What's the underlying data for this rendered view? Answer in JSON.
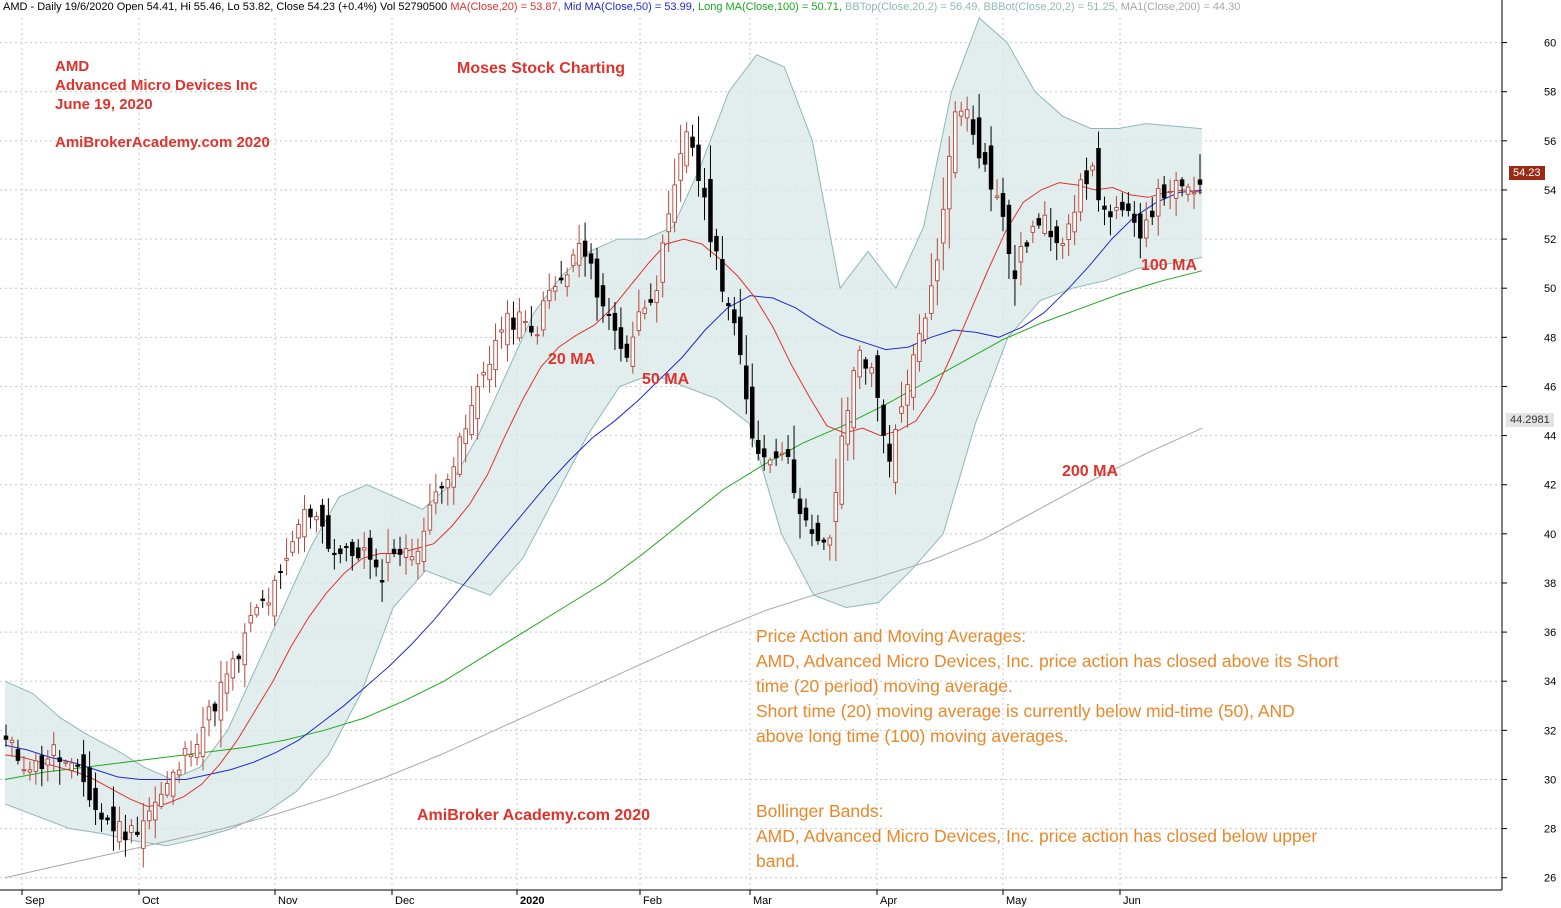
{
  "header": {
    "title": "AMD - Daily 19/6/2020 Open 54.41, Hi 55.46, Lo 53.82, Close 54.23 (+0.4%) Vol 52790500",
    "indicators": [
      {
        "label": "MA(Close,20) = 53.87,",
        "color": "#e0322c"
      },
      {
        "label": "Mid MA(Close,50) = 53.99,",
        "color": "#1f2bc7"
      },
      {
        "label": "Long MA(Close,100) = 50.71,",
        "color": "#1ea81e"
      },
      {
        "label": "BBTop(Close,20,2) = 56.49,",
        "color": "#8fb7b7"
      },
      {
        "label": "BBBot(Close,20,2) = 51.25,",
        "color": "#8fb7b7"
      },
      {
        "label": "MA1(Close,200) = 44.30",
        "color": "#a8a8a8"
      }
    ]
  },
  "annotations": {
    "ticker": "AMD",
    "company": "Advanced Micro Devices Inc",
    "date": "June 19, 2020",
    "site_top": "AmiBrokerAcademy.com  2020",
    "brand": "Moses Stock Charting",
    "site_bottom": "AmiBroker Academy.com  2020",
    "ma20": "20 MA",
    "ma50": "50 MA",
    "ma100": "100 MA",
    "ma200": "200 MA"
  },
  "commentary": {
    "pa_title": "Price Action and Moving Averages:",
    "pa_line1": "AMD, Advanced Micro Devices, Inc. price action has closed above its Short",
    "pa_line2": "time (20 period) moving average.",
    "pa_line3": "Short time (20) moving average is currently below mid-time (50), AND",
    "pa_line4": "above long time (100) moving averages.",
    "bb_title": "Bollinger Bands:",
    "bb_line1": "AMD, Advanced Micro Devices, Inc. price action has closed below upper",
    "bb_line2": "band."
  },
  "price_labels": {
    "last": "54.23",
    "ma200": "44.2981"
  },
  "colors": {
    "up_candle": "#b5463a",
    "down_candle": "#000000",
    "ma20": "#e0322c",
    "ma50": "#1f2bc7",
    "ma100": "#1ea81e",
    "ma200": "#a8a8a8",
    "bb_fill": "#d8e8e8",
    "bb_line": "#8fb7b7",
    "grid": "#c8c8c8"
  },
  "chart_data": {
    "type": "candlestick",
    "ylim": [
      25.5,
      61
    ],
    "yticks": [
      26,
      28,
      30,
      32,
      34,
      36,
      38,
      40,
      42,
      44,
      46,
      48,
      50,
      52,
      54,
      56,
      58,
      60
    ],
    "xticks": [
      {
        "label": "Sep",
        "bold": false
      },
      {
        "label": "Oct",
        "bold": false
      },
      {
        "label": "Nov",
        "bold": false
      },
      {
        "label": "Dec",
        "bold": false
      },
      {
        "label": "2020",
        "bold": true
      },
      {
        "label": "Feb",
        "bold": false
      },
      {
        "label": "Mar",
        "bold": false
      },
      {
        "label": "Apr",
        "bold": false
      },
      {
        "label": "May",
        "bold": false
      },
      {
        "label": "Jun",
        "bold": false
      }
    ],
    "close_anchors": [
      31.5,
      30.8,
      30.5,
      31.2,
      30.5,
      29.9,
      28.5,
      28.1,
      27.8,
      28.6,
      29.3,
      30.3,
      31.5,
      32.5,
      33.9,
      35.0,
      36.8,
      37.4,
      38.5,
      40.7,
      41.0,
      39.3,
      39.1,
      39.4,
      38.1,
      39.5,
      39.0,
      40.2,
      42.2,
      43.0,
      45.0,
      47.0,
      48.4,
      48.8,
      48.0,
      49.8,
      50.3,
      51.8,
      50.2,
      48.6,
      47.3,
      49.2,
      50.3,
      53.5,
      56.8,
      53.4,
      50.8,
      48.4,
      44.2,
      43.0,
      43.7,
      41.6,
      39.7,
      39.3,
      44.1,
      47.7,
      46.2,
      43.0,
      45.5,
      48.4,
      50.6,
      56.8,
      57.5,
      55.1,
      53.6,
      50.5,
      52.3,
      52.6,
      52.0,
      53.6,
      54.9,
      52.8,
      53.0,
      52.3,
      53.4,
      54.2,
      53.8,
      54.23
    ],
    "ma20": [
      31.0,
      30.9,
      30.7,
      30.5,
      30.3,
      30.0,
      29.6,
      29.2,
      28.9,
      29.0,
      29.3,
      29.8,
      30.6,
      31.6,
      32.8,
      34.0,
      35.4,
      36.6,
      37.6,
      38.4,
      39.0,
      39.2,
      39.2,
      39.4,
      39.6,
      40.3,
      41.2,
      42.4,
      44.0,
      45.5,
      46.8,
      47.6,
      48.1,
      48.5,
      49.2,
      50.1,
      51.0,
      51.8,
      52.0,
      51.8,
      51.2,
      50.5,
      49.6,
      48.4,
      46.9,
      45.6,
      44.4,
      44.1,
      44.3,
      44.0,
      44.2,
      44.6,
      45.7,
      47.3,
      49.0,
      50.7,
      52.3,
      53.5,
      54.0,
      54.3,
      54.2,
      54.0,
      54.1,
      53.8,
      53.7,
      53.9,
      54.0,
      53.9
    ],
    "ma50": [
      31.4,
      31.2,
      30.9,
      30.7,
      30.4,
      30.1,
      30.0,
      30.0,
      30.0,
      30.2,
      30.4,
      30.7,
      31.1,
      31.6,
      32.3,
      33.0,
      33.8,
      34.6,
      35.5,
      36.5,
      37.6,
      38.7,
      39.8,
      40.9,
      42.0,
      43.0,
      43.9,
      44.6,
      45.4,
      46.3,
      47.2,
      48.3,
      49.2,
      49.7,
      49.6,
      49.2,
      48.6,
      48.1,
      47.8,
      47.5,
      47.6,
      48.0,
      48.3,
      48.2,
      48.0,
      48.4,
      49.0,
      49.9,
      50.9,
      52.0,
      52.9,
      53.5,
      53.9,
      53.99
    ],
    "ma100": [
      30.0,
      30.3,
      30.5,
      30.7,
      30.9,
      31.1,
      31.3,
      31.6,
      32.0,
      32.5,
      33.2,
      34.0,
      35.0,
      36.0,
      37.0,
      38.0,
      39.2,
      40.5,
      41.8,
      42.8,
      43.7,
      44.4,
      45.2,
      46.1,
      47.0,
      47.9,
      48.6,
      49.2,
      49.8,
      50.3,
      50.71
    ],
    "ma200": [
      26.0,
      26.5,
      27.0,
      27.5,
      28.0,
      28.6,
      29.3,
      30.1,
      31.0,
      32.0,
      33.0,
      34.0,
      35.0,
      36.0,
      36.9,
      37.6,
      38.2,
      38.9,
      39.8,
      41.0,
      42.2,
      43.3,
      44.3
    ],
    "bb_top": [
      34.0,
      33.5,
      32.5,
      31.8,
      31.2,
      30.5,
      30.0,
      30.5,
      32.0,
      34.5,
      37.0,
      39.5,
      41.5,
      42.0,
      41.5,
      41.0,
      42.0,
      44.0,
      46.5,
      49.0,
      50.5,
      51.5,
      52.0,
      52.0,
      52.5,
      55.0,
      58.0,
      59.5,
      59.0,
      56.0,
      50.0,
      51.5,
      50.0,
      52.5,
      58.0,
      61.0,
      60.0,
      58.0,
      57.0,
      56.5,
      56.5,
      56.7,
      56.6,
      56.49
    ],
    "bb_bot": [
      29.0,
      28.5,
      28.0,
      27.8,
      27.5,
      27.3,
      27.6,
      28.0,
      28.6,
      29.5,
      31.0,
      33.5,
      37.0,
      38.5,
      38.0,
      37.5,
      39.0,
      41.5,
      44.0,
      46.0,
      46.5,
      46.0,
      45.5,
      44.5,
      40.0,
      37.5,
      37.0,
      37.2,
      38.5,
      40.0,
      44.5,
      48.0,
      49.5,
      50.0,
      50.3,
      50.8,
      51.0,
      51.25
    ]
  }
}
